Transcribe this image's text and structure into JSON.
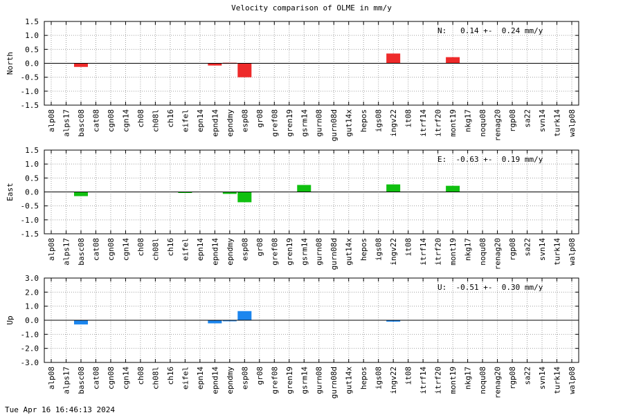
{
  "title": "Velocity comparison of OLME in mm/y",
  "timestamp": "Tue Apr 16 16:46:13 2024",
  "chart_data": [
    {
      "type": "bar",
      "ylabel": "North",
      "ylim": [
        -1.5,
        1.5
      ],
      "yticks": [
        "1.5",
        "1.0",
        "0.5",
        "0.0",
        "-0.5",
        "-1.0",
        "-1.5"
      ],
      "annotation": "N:   0.14 +-  0.24 mm/y",
      "color": "#ee2a2a",
      "grid": true,
      "categories": [
        "alp08",
        "alps17",
        "basc08",
        "cat08",
        "cgn08",
        "cgn14",
        "ch08",
        "ch08l",
        "ch16",
        "eifel",
        "epn14",
        "epnd14",
        "epndmy",
        "esp08",
        "gr08",
        "gref08",
        "gren19",
        "gsrm14",
        "gurn08",
        "gurn08d",
        "gut14x",
        "hepos",
        "igs08",
        "ingv22",
        "it08",
        "itrf14",
        "itrf20",
        "mont19",
        "nkg17",
        "noqu08",
        "renag20",
        "rgp08",
        "sa22",
        "svn14",
        "turk14",
        "walp08"
      ],
      "values": [
        0,
        0,
        -0.13,
        0,
        0,
        0,
        0,
        0,
        0,
        0,
        0,
        -0.08,
        0.02,
        -0.5,
        0,
        0,
        0,
        0,
        0,
        0,
        0,
        0,
        0,
        0.35,
        0,
        0,
        0,
        0.22,
        0,
        0,
        0,
        0,
        0,
        0,
        0,
        0
      ]
    },
    {
      "type": "bar",
      "ylabel": "East",
      "ylim": [
        -1.5,
        1.5
      ],
      "yticks": [
        "1.5",
        "1.0",
        "0.5",
        "0.0",
        "-0.5",
        "-1.0",
        "-1.5"
      ],
      "annotation": "E:  -0.63 +-  0.19 mm/y",
      "color": "#10c010",
      "grid": true,
      "categories": [
        "alp08",
        "alps17",
        "basc08",
        "cat08",
        "cgn08",
        "cgn14",
        "ch08",
        "ch08l",
        "ch16",
        "eifel",
        "epn14",
        "epnd14",
        "epndmy",
        "esp08",
        "gr08",
        "gref08",
        "gren19",
        "gsrm14",
        "gurn08",
        "gurn08d",
        "gut14x",
        "hepos",
        "igs08",
        "ingv22",
        "it08",
        "itrf14",
        "itrf20",
        "mont19",
        "nkg17",
        "noqu08",
        "renag20",
        "rgp08",
        "sa22",
        "svn14",
        "turk14",
        "walp08"
      ],
      "values": [
        0,
        0,
        -0.15,
        0,
        0,
        0,
        0,
        0,
        0,
        -0.03,
        0,
        0,
        -0.07,
        -0.37,
        0,
        0,
        0,
        0.25,
        0,
        0,
        0,
        0,
        0,
        0.27,
        0,
        0,
        0,
        0.22,
        0,
        0,
        0,
        0,
        0,
        0,
        0,
        0
      ]
    },
    {
      "type": "bar",
      "ylabel": "Up",
      "ylim": [
        -3.0,
        3.0
      ],
      "yticks": [
        "3.0",
        "2.0",
        "1.0",
        "0.0",
        "-1.0",
        "-2.0",
        "-3.0"
      ],
      "annotation": "U:  -0.51 +-  0.30 mm/y",
      "color": "#1c86ee",
      "grid": true,
      "categories": [
        "alp08",
        "alps17",
        "basc08",
        "cat08",
        "cgn08",
        "cgn14",
        "ch08",
        "ch08l",
        "ch16",
        "eifel",
        "epn14",
        "epnd14",
        "epndmy",
        "esp08",
        "gr08",
        "gref08",
        "gren19",
        "gsrm14",
        "gurn08",
        "gurn08d",
        "gut14x",
        "hepos",
        "igs08",
        "ingv22",
        "it08",
        "itrf14",
        "itrf20",
        "mont19",
        "nkg17",
        "noqu08",
        "renag20",
        "rgp08",
        "sa22",
        "svn14",
        "turk14",
        "walp08"
      ],
      "values": [
        0,
        0,
        -0.3,
        0,
        0,
        0,
        0,
        0,
        0,
        0,
        0,
        -0.22,
        -0.05,
        0.65,
        0,
        0,
        0,
        0,
        0,
        0,
        0,
        0,
        0,
        -0.1,
        0,
        0,
        0,
        0,
        0,
        0,
        0,
        0,
        0,
        0,
        0,
        0
      ]
    }
  ]
}
